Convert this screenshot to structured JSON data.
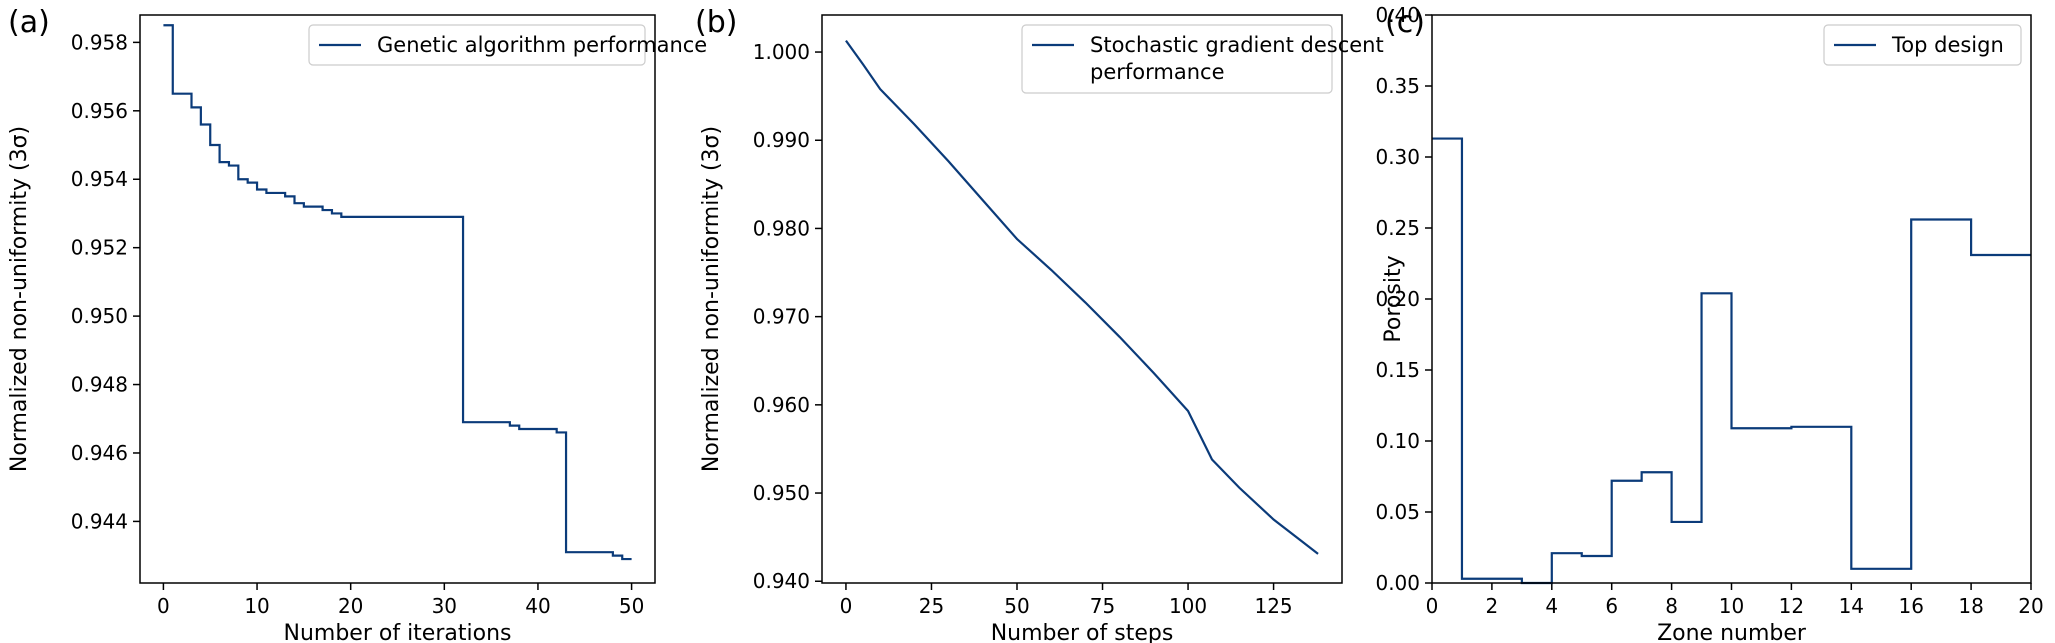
{
  "colors": {
    "line": "#0b3b7a",
    "axis": "#000000",
    "background": "#ffffff",
    "legend_border": "#cccccc"
  },
  "chart_data": [
    {
      "panel_label": "(a)",
      "type": "line",
      "step": "post",
      "xlabel": "Number of iterations",
      "ylabel": "Normalized non-uniformity (3σ)",
      "xlim": [
        -2.5,
        52.5
      ],
      "ylim": [
        0.9422,
        0.9588
      ],
      "xticks": [
        0,
        10,
        20,
        30,
        40,
        50
      ],
      "xtick_labels": [
        "0",
        "10",
        "20",
        "30",
        "40",
        "50"
      ],
      "yticks": [
        0.944,
        0.946,
        0.948,
        0.95,
        0.952,
        0.954,
        0.956,
        0.958
      ],
      "ytick_labels": [
        "0.944",
        "0.946",
        "0.948",
        "0.950",
        "0.952",
        "0.954",
        "0.956",
        "0.958"
      ],
      "legend": {
        "placement": "upper right"
      },
      "series": [
        {
          "name": "Genetic algorithm performance",
          "x": [
            0,
            1,
            2,
            3,
            4,
            5,
            6,
            7,
            8,
            9,
            10,
            11,
            12,
            13,
            14,
            15,
            16,
            17,
            18,
            19,
            20,
            32,
            33,
            37,
            38,
            42,
            43,
            47,
            48,
            49,
            50
          ],
          "y": [
            0.9585,
            0.9565,
            0.9565,
            0.9561,
            0.9556,
            0.955,
            0.9545,
            0.9544,
            0.954,
            0.9539,
            0.9537,
            0.9536,
            0.9536,
            0.9535,
            0.9533,
            0.9532,
            0.9532,
            0.9531,
            0.953,
            0.9529,
            0.9529,
            0.9469,
            0.9469,
            0.9468,
            0.9467,
            0.9466,
            0.9431,
            0.9431,
            0.943,
            0.9429,
            0.9429
          ]
        }
      ]
    },
    {
      "panel_label": "(b)",
      "type": "line",
      "xlabel": "Number of steps",
      "ylabel": "Normalized non-uniformity (3σ)",
      "xlim": [
        -7,
        145
      ],
      "ylim": [
        0.9398,
        1.0042
      ],
      "xticks": [
        0,
        25,
        50,
        75,
        100,
        125
      ],
      "xtick_labels": [
        "0",
        "25",
        "50",
        "75",
        "100",
        "125"
      ],
      "yticks": [
        0.94,
        0.95,
        0.96,
        0.97,
        0.98,
        0.99,
        1.0
      ],
      "ytick_labels": [
        "0.940",
        "0.950",
        "0.960",
        "0.970",
        "0.980",
        "0.990",
        "1.000"
      ],
      "legend": {
        "placement": "upper right"
      },
      "series": [
        {
          "name_lines": [
            "Stochastic gradient descent",
            "performance"
          ],
          "x": [
            0,
            5,
            10,
            20,
            30,
            40,
            50,
            60,
            70,
            80,
            90,
            100,
            107,
            115,
            125,
            133,
            138
          ],
          "y": [
            1.0013,
            0.9986,
            0.9958,
            0.9918,
            0.9876,
            0.9832,
            0.9788,
            0.9753,
            0.9716,
            0.9677,
            0.9636,
            0.9593,
            0.9538,
            0.9506,
            0.947,
            0.9446,
            0.9431
          ]
        }
      ]
    },
    {
      "panel_label": "(c)",
      "type": "line",
      "step": "post",
      "xlabel": "Zone number",
      "ylabel": "Porosity",
      "xlim": [
        0,
        20
      ],
      "ylim": [
        0,
        0.4
      ],
      "xticks": [
        0,
        2,
        4,
        6,
        8,
        10,
        12,
        14,
        16,
        18,
        20
      ],
      "xtick_labels": [
        "0",
        "2",
        "4",
        "6",
        "8",
        "10",
        "12",
        "14",
        "16",
        "18",
        "20"
      ],
      "yticks": [
        0,
        0.05,
        0.1,
        0.15,
        0.2,
        0.25,
        0.3,
        0.35,
        0.4
      ],
      "ytick_labels": [
        "0.00",
        "0.05",
        "0.10",
        "0.15",
        "0.20",
        "0.25",
        "0.30",
        "0.35",
        "0.40"
      ],
      "legend": {
        "placement": "upper right"
      },
      "series": [
        {
          "name": "Top design",
          "x": [
            0,
            1,
            3,
            4,
            5,
            6,
            7,
            8,
            9,
            10,
            12,
            14,
            16,
            18,
            20
          ],
          "y": [
            0.313,
            0.003,
            0.0,
            0.021,
            0.019,
            0.072,
            0.078,
            0.043,
            0.204,
            0.109,
            0.11,
            0.01,
            0.256,
            0.231,
            0.231
          ]
        }
      ]
    }
  ]
}
